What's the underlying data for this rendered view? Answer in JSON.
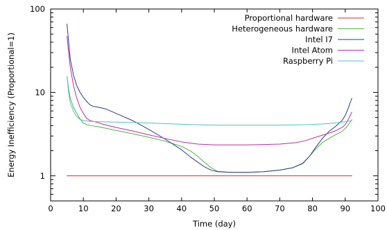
{
  "chart_data": {
    "type": "line",
    "xlabel": "Time (day)",
    "ylabel": "Energy Inefficiency (Proportional=1)",
    "xlim": [
      0,
      100
    ],
    "ylim": [
      0.5,
      100
    ],
    "yscale": "log",
    "x_ticks": [
      "0",
      "10",
      "20",
      "30",
      "40",
      "50",
      "60",
      "70",
      "80",
      "90",
      "100"
    ],
    "y_ticks": [
      "1",
      "10",
      "100"
    ],
    "grid": false,
    "legend_position": "top-right",
    "series": [
      {
        "name": "Proportional hardware",
        "color": "#d62728",
        "points": [
          [
            5,
            1.0
          ],
          [
            92,
            1.0
          ]
        ]
      },
      {
        "name": "Heterogeneous hardware",
        "color": "#4db33d",
        "points": [
          [
            5,
            15.5
          ],
          [
            5.5,
            11
          ],
          [
            6,
            8.5
          ],
          [
            7,
            6.6
          ],
          [
            8,
            5.6
          ],
          [
            9,
            4.8
          ],
          [
            10,
            4.3
          ],
          [
            11,
            4.1
          ],
          [
            13,
            3.95
          ],
          [
            15,
            3.85
          ],
          [
            20,
            3.5
          ],
          [
            25,
            3.2
          ],
          [
            30,
            2.9
          ],
          [
            35,
            2.6
          ],
          [
            40,
            2.25
          ],
          [
            43,
            1.95
          ],
          [
            45,
            1.7
          ],
          [
            47,
            1.45
          ],
          [
            49,
            1.25
          ],
          [
            51,
            1.13
          ],
          [
            55,
            1.1
          ],
          [
            60,
            1.1
          ],
          [
            65,
            1.12
          ],
          [
            70,
            1.17
          ],
          [
            74,
            1.25
          ],
          [
            77,
            1.42
          ],
          [
            79,
            1.7
          ],
          [
            81,
            2.1
          ],
          [
            83,
            2.5
          ],
          [
            85,
            2.8
          ],
          [
            87,
            3.1
          ],
          [
            89,
            3.4
          ],
          [
            90,
            3.7
          ],
          [
            91,
            4.1
          ],
          [
            92,
            4.7
          ]
        ]
      },
      {
        "name": "Intel I7",
        "color": "#2b3a8f",
        "points": [
          [
            5,
            66
          ],
          [
            5.5,
            40
          ],
          [
            6,
            25
          ],
          [
            7,
            16
          ],
          [
            8,
            12
          ],
          [
            9,
            10
          ],
          [
            10,
            8.7
          ],
          [
            11,
            7.8
          ],
          [
            12,
            7.1
          ],
          [
            13,
            6.8
          ],
          [
            15,
            6.6
          ],
          [
            17,
            6.3
          ],
          [
            20,
            5.6
          ],
          [
            25,
            4.6
          ],
          [
            30,
            3.6
          ],
          [
            35,
            2.75
          ],
          [
            40,
            2.05
          ],
          [
            43,
            1.65
          ],
          [
            45,
            1.45
          ],
          [
            47,
            1.28
          ],
          [
            49,
            1.17
          ],
          [
            51,
            1.12
          ],
          [
            55,
            1.1
          ],
          [
            60,
            1.1
          ],
          [
            65,
            1.12
          ],
          [
            70,
            1.17
          ],
          [
            74,
            1.25
          ],
          [
            77,
            1.4
          ],
          [
            79,
            1.7
          ],
          [
            81,
            2.2
          ],
          [
            83,
            2.8
          ],
          [
            85,
            3.4
          ],
          [
            87,
            3.9
          ],
          [
            89,
            4.6
          ],
          [
            90,
            5.3
          ],
          [
            91,
            6.6
          ],
          [
            92,
            8.5
          ]
        ]
      },
      {
        "name": "Intel Atom",
        "color": "#b32fa6",
        "points": [
          [
            5,
            47
          ],
          [
            5.5,
            30
          ],
          [
            6,
            20
          ],
          [
            7,
            12
          ],
          [
            8,
            8.5
          ],
          [
            9,
            6.6
          ],
          [
            10,
            5.6
          ],
          [
            11,
            4.9
          ],
          [
            12,
            4.6
          ],
          [
            14,
            4.4
          ],
          [
            16,
            4.15
          ],
          [
            20,
            3.8
          ],
          [
            25,
            3.45
          ],
          [
            30,
            3.1
          ],
          [
            35,
            2.8
          ],
          [
            40,
            2.55
          ],
          [
            45,
            2.4
          ],
          [
            50,
            2.35
          ],
          [
            55,
            2.35
          ],
          [
            60,
            2.35
          ],
          [
            65,
            2.37
          ],
          [
            70,
            2.4
          ],
          [
            75,
            2.5
          ],
          [
            78,
            2.65
          ],
          [
            81,
            2.9
          ],
          [
            84,
            3.15
          ],
          [
            87,
            3.45
          ],
          [
            89,
            3.8
          ],
          [
            90,
            4.1
          ],
          [
            91,
            4.8
          ],
          [
            92,
            5.8
          ]
        ]
      },
      {
        "name": "Raspberry Pi",
        "color": "#4fc0c7",
        "points": [
          [
            5,
            15.5
          ],
          [
            5.5,
            10
          ],
          [
            6,
            7.5
          ],
          [
            7,
            5.9
          ],
          [
            8,
            5.1
          ],
          [
            9,
            4.75
          ],
          [
            10,
            4.6
          ],
          [
            12,
            4.5
          ],
          [
            15,
            4.45
          ],
          [
            20,
            4.4
          ],
          [
            30,
            4.3
          ],
          [
            40,
            4.15
          ],
          [
            50,
            4.05
          ],
          [
            60,
            4.05
          ],
          [
            70,
            4.05
          ],
          [
            78,
            4.1
          ],
          [
            84,
            4.2
          ],
          [
            88,
            4.35
          ],
          [
            90,
            4.45
          ],
          [
            92,
            4.6
          ]
        ]
      }
    ]
  }
}
